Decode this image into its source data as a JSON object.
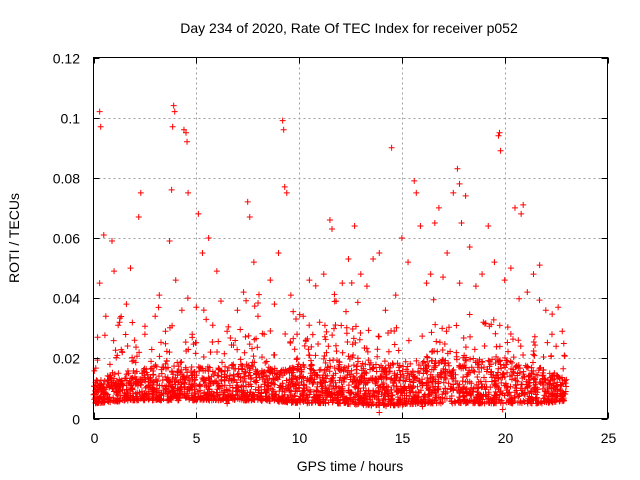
{
  "chart_data": {
    "type": "scatter",
    "title": "Day 234 of 2020, Rate Of TEC Index for receiver p052",
    "xlabel": "GPS time / hours",
    "ylabel": "ROTI / TECUs",
    "xlim": [
      0,
      25
    ],
    "ylim": [
      0,
      0.12
    ],
    "xticks": [
      0,
      5,
      10,
      15,
      20,
      25
    ],
    "xtick_labels": [
      "0",
      "5",
      "10",
      "15",
      "20",
      "25"
    ],
    "yticks": [
      0,
      0.02,
      0.04,
      0.06,
      0.08,
      0.1,
      0.12
    ],
    "ytick_labels": [
      "0",
      "0.02",
      "0.04",
      "0.06",
      "0.08",
      "0.1",
      "0.12"
    ],
    "grid": true,
    "marker": "+",
    "color": "#ff0000",
    "series": [
      {
        "points": [
          [
            0.1,
            0.012
          ],
          [
            0.2,
            0.027
          ],
          [
            0.3,
            0.045
          ],
          [
            0.3,
            0.102
          ],
          [
            0.35,
            0.097
          ],
          [
            0.5,
            0.061
          ],
          [
            0.6,
            0.034
          ],
          [
            0.8,
            0.018
          ],
          [
            0.9,
            0.059
          ],
          [
            1.0,
            0.049
          ],
          [
            1.2,
            0.031
          ],
          [
            1.4,
            0.022
          ],
          [
            1.6,
            0.038
          ],
          [
            1.8,
            0.05
          ],
          [
            2.0,
            0.026
          ],
          [
            2.2,
            0.067
          ],
          [
            2.3,
            0.075
          ],
          [
            2.5,
            0.028
          ],
          [
            2.8,
            0.019
          ],
          [
            3.0,
            0.034
          ],
          [
            3.2,
            0.041
          ],
          [
            3.5,
            0.029
          ],
          [
            3.7,
            0.059
          ],
          [
            3.8,
            0.076
          ],
          [
            3.85,
            0.097
          ],
          [
            3.9,
            0.104
          ],
          [
            3.95,
            0.102
          ],
          [
            4.0,
            0.046
          ],
          [
            4.3,
            0.036
          ],
          [
            4.4,
            0.096
          ],
          [
            4.5,
            0.095
          ],
          [
            4.55,
            0.092
          ],
          [
            4.6,
            0.075
          ],
          [
            4.8,
            0.028
          ],
          [
            5.0,
            0.037
          ],
          [
            5.1,
            0.068
          ],
          [
            5.3,
            0.055
          ],
          [
            5.6,
            0.06
          ],
          [
            5.8,
            0.031
          ],
          [
            6.0,
            0.049
          ],
          [
            6.2,
            0.039
          ],
          [
            6.5,
            0.029
          ],
          [
            6.8,
            0.018
          ],
          [
            7.0,
            0.036
          ],
          [
            7.3,
            0.042
          ],
          [
            7.5,
            0.072
          ],
          [
            7.6,
            0.067
          ],
          [
            7.8,
            0.052
          ],
          [
            8.0,
            0.034
          ],
          [
            8.3,
            0.028
          ],
          [
            8.6,
            0.046
          ],
          [
            8.8,
            0.038
          ],
          [
            9.0,
            0.055
          ],
          [
            9.2,
            0.099
          ],
          [
            9.25,
            0.096
          ],
          [
            9.3,
            0.077
          ],
          [
            9.4,
            0.075
          ],
          [
            9.6,
            0.041
          ],
          [
            9.9,
            0.028
          ],
          [
            10.2,
            0.034
          ],
          [
            10.5,
            0.046
          ],
          [
            10.8,
            0.021
          ],
          [
            11.0,
            0.032
          ],
          [
            11.2,
            0.048
          ],
          [
            11.5,
            0.066
          ],
          [
            11.6,
            0.063
          ],
          [
            11.8,
            0.039
          ],
          [
            12.1,
            0.045
          ],
          [
            12.4,
            0.053
          ],
          [
            12.7,
            0.064
          ],
          [
            13.0,
            0.048
          ],
          [
            13.3,
            0.044
          ],
          [
            13.6,
            0.053
          ],
          [
            13.9,
            0.055
          ],
          [
            14.2,
            0.036
          ],
          [
            14.5,
            0.09
          ],
          [
            14.7,
            0.041
          ],
          [
            15.0,
            0.06
          ],
          [
            15.3,
            0.052
          ],
          [
            15.6,
            0.079
          ],
          [
            15.7,
            0.075
          ],
          [
            15.9,
            0.064
          ],
          [
            16.2,
            0.045
          ],
          [
            16.4,
            0.048
          ],
          [
            16.6,
            0.065
          ],
          [
            16.8,
            0.07
          ],
          [
            17.0,
            0.047
          ],
          [
            17.2,
            0.055
          ],
          [
            17.5,
            0.075
          ],
          [
            17.7,
            0.083
          ],
          [
            17.8,
            0.078
          ],
          [
            17.9,
            0.065
          ],
          [
            18.1,
            0.074
          ],
          [
            18.3,
            0.057
          ],
          [
            18.6,
            0.044
          ],
          [
            18.9,
            0.048
          ],
          [
            19.2,
            0.064
          ],
          [
            19.5,
            0.052
          ],
          [
            19.7,
            0.094
          ],
          [
            19.75,
            0.095
          ],
          [
            19.8,
            0.089
          ],
          [
            20.0,
            0.046
          ],
          [
            20.3,
            0.05
          ],
          [
            20.5,
            0.07
          ],
          [
            20.8,
            0.068
          ],
          [
            20.9,
            0.071
          ],
          [
            21.1,
            0.042
          ],
          [
            21.4,
            0.048
          ],
          [
            21.7,
            0.051
          ],
          [
            22.0,
            0.036
          ],
          [
            22.3,
            0.028
          ],
          [
            22.5,
            0.024
          ],
          [
            22.6,
            0.037
          ],
          [
            22.8,
            0.029
          ],
          [
            22.9,
            0.021
          ],
          [
            13.9,
            0.002
          ],
          [
            19.9,
            0.003
          ],
          [
            16.0,
            0.004
          ],
          [
            6.5,
            0.005
          ],
          [
            12.0,
            0.005
          ]
        ],
        "dense_band": {
          "x_range": [
            0,
            23
          ],
          "envelope": [
            {
              "x": 0,
              "low": 0.005,
              "high": 0.02
            },
            {
              "x": 2,
              "low": 0.006,
              "high": 0.025
            },
            {
              "x": 4,
              "low": 0.006,
              "high": 0.028
            },
            {
              "x": 6,
              "low": 0.006,
              "high": 0.026
            },
            {
              "x": 8,
              "low": 0.006,
              "high": 0.03
            },
            {
              "x": 10,
              "low": 0.005,
              "high": 0.028
            },
            {
              "x": 12,
              "low": 0.005,
              "high": 0.032
            },
            {
              "x": 14,
              "low": 0.004,
              "high": 0.03
            },
            {
              "x": 16,
              "low": 0.005,
              "high": 0.031
            },
            {
              "x": 18,
              "low": 0.005,
              "high": 0.033
            },
            {
              "x": 20,
              "low": 0.005,
              "high": 0.032
            },
            {
              "x": 22,
              "low": 0.005,
              "high": 0.026
            },
            {
              "x": 23,
              "low": 0.006,
              "high": 0.02
            }
          ]
        }
      }
    ]
  }
}
